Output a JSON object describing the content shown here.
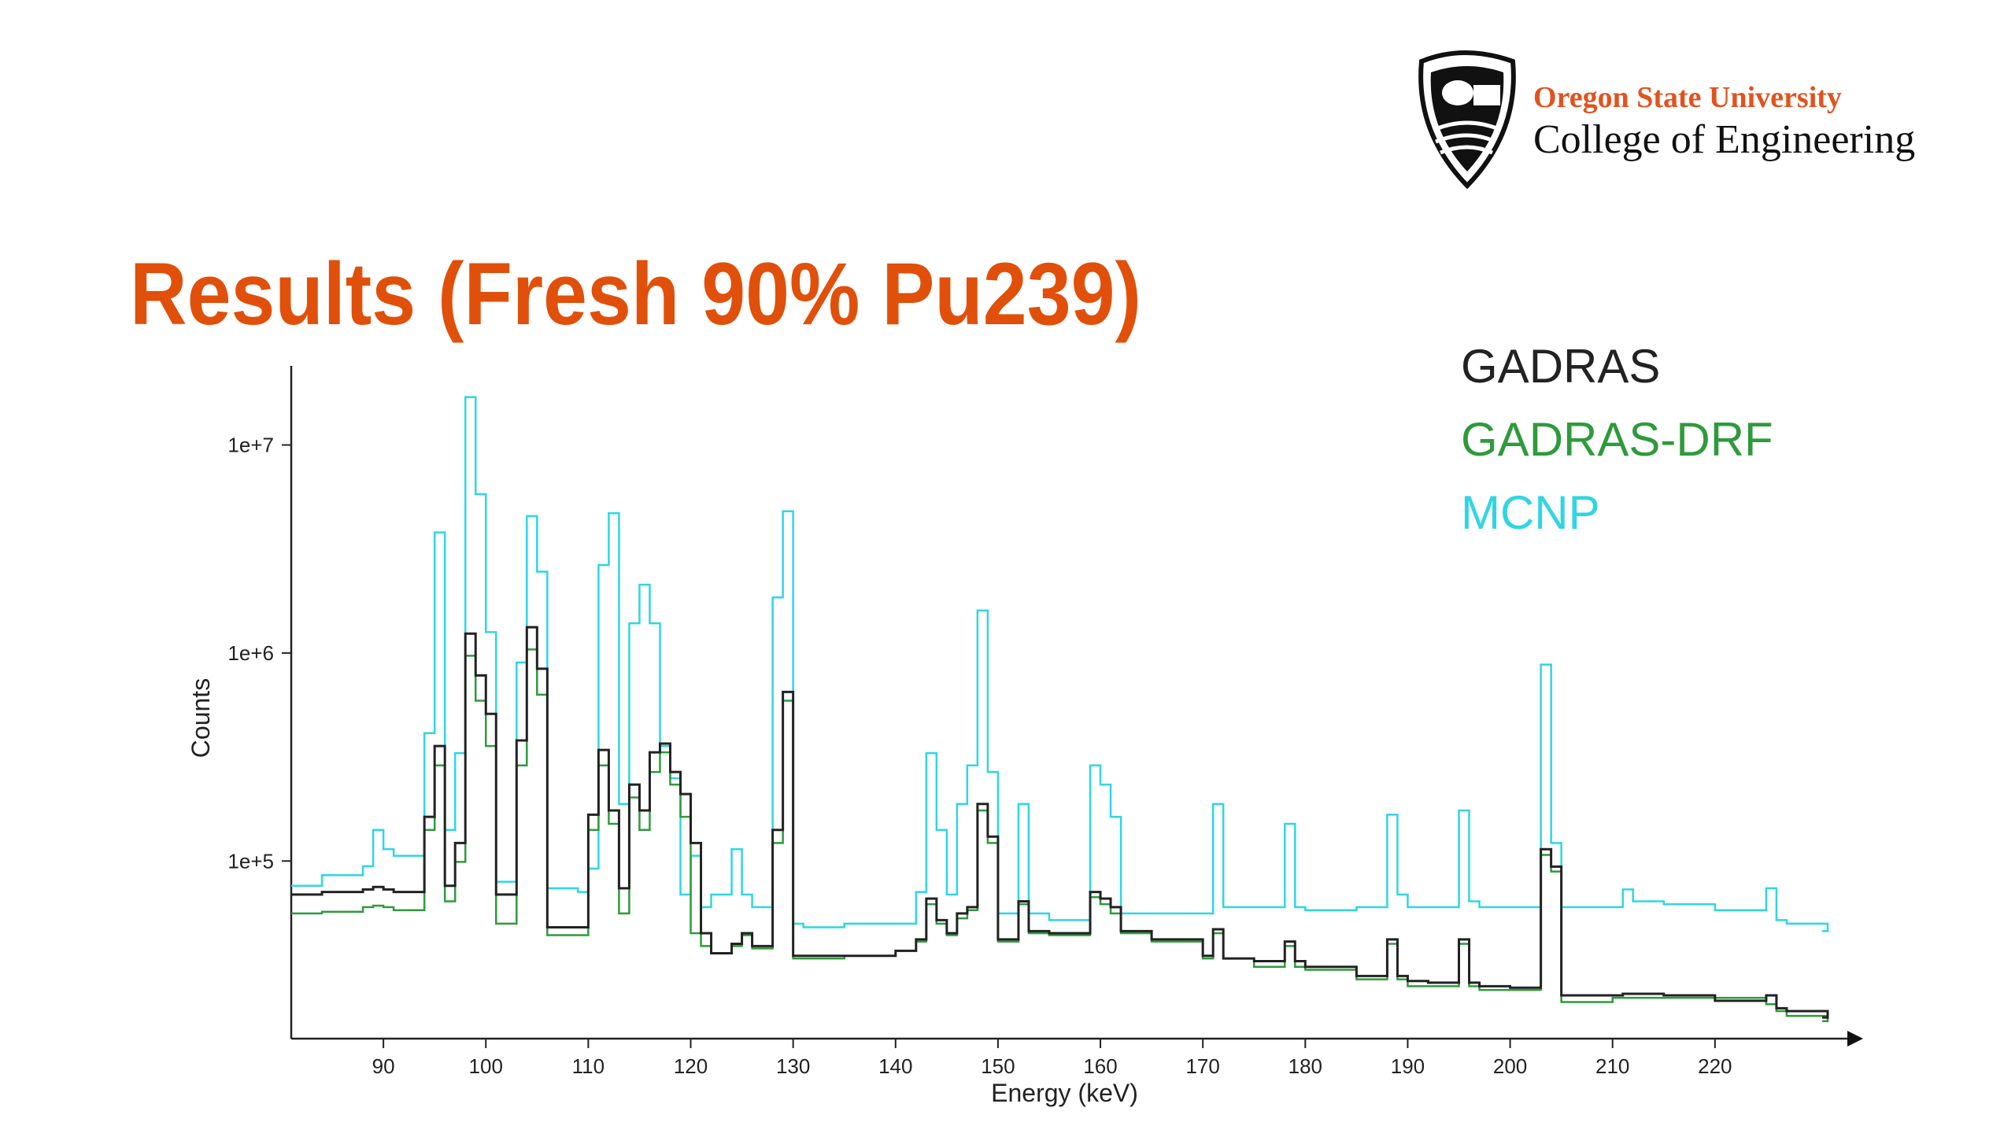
{
  "header": {
    "university": "Oregon State University",
    "college": "College of Engineering"
  },
  "chart_data": {
    "type": "step",
    "title": "Results (Fresh 90% Pu239)",
    "xlabel": "Energy (keV)",
    "ylabel": "Counts",
    "log_y": true,
    "xlim": [
      81,
      232
    ],
    "ylim": [
      14000,
      24000000
    ],
    "xticks": [
      90,
      100,
      110,
      120,
      130,
      140,
      150,
      160,
      170,
      180,
      190,
      200,
      210,
      220
    ],
    "yticks": [
      {
        "value": 100000,
        "label": "1e+5"
      },
      {
        "value": 1000000,
        "label": "1e+6"
      },
      {
        "value": 10000000,
        "label": "1e+7"
      }
    ],
    "legend": "top-right",
    "x": [
      81,
      84,
      88,
      89,
      90,
      91,
      94,
      95,
      96,
      97,
      98,
      99,
      100,
      101,
      103,
      104,
      105,
      106,
      109,
      110,
      111,
      112,
      113,
      114,
      115,
      116,
      117,
      118,
      119,
      120,
      121,
      122,
      124,
      125,
      126,
      128,
      129,
      130,
      131,
      135,
      140,
      142,
      143,
      144,
      145,
      146,
      147,
      148,
      149,
      150,
      152,
      153,
      155,
      159,
      160,
      161,
      162,
      165,
      170,
      171,
      172,
      175,
      178,
      179,
      180,
      185,
      188,
      189,
      190,
      192,
      195,
      196,
      197,
      200,
      203,
      204,
      205,
      210,
      211,
      212,
      215,
      220,
      225,
      226,
      227,
      231
    ],
    "series": [
      {
        "name": "GADRAS",
        "color": "#222222",
        "values": [
          69000,
          71000,
          73000,
          75000,
          73000,
          71000,
          163000,
          357000,
          76000,
          122000,
          1240000,
          780000,
          510000,
          69000,
          380000,
          1330000,
          840000,
          48000,
          48000,
          167000,
          342000,
          175000,
          74000,
          233000,
          175000,
          333000,
          367000,
          268000,
          210000,
          122000,
          45000,
          36000,
          40000,
          45000,
          39000,
          141000,
          650000,
          35000,
          35000,
          35000,
          37000,
          42000,
          66000,
          52000,
          45000,
          56000,
          60000,
          188000,
          131000,
          42000,
          64000,
          46000,
          45000,
          71000,
          66000,
          60000,
          46000,
          42000,
          35000,
          47000,
          34000,
          33000,
          41000,
          33000,
          31000,
          28000,
          42000,
          28000,
          26500,
          26000,
          42000,
          26000,
          25000,
          24600,
          114000,
          94000,
          22600,
          22600,
          23000,
          23000,
          22600,
          21300,
          22600,
          19600,
          19000,
          17700
        ]
      },
      {
        "name": "GADRAS-DRF",
        "color": "#2f9a3c",
        "values": [
          56000,
          57000,
          60000,
          61000,
          60000,
          58000,
          141000,
          288000,
          64000,
          99000,
          970000,
          590000,
          357000,
          50000,
          288000,
          1040000,
          630000,
          44000,
          44000,
          141000,
          288000,
          151000,
          56000,
          202000,
          141000,
          268000,
          333000,
          233000,
          163000,
          45000,
          39000,
          36000,
          39000,
          44000,
          38000,
          122000,
          590000,
          34000,
          34000,
          35000,
          37000,
          41000,
          62000,
          50000,
          44000,
          53000,
          58000,
          175000,
          122000,
          41000,
          62000,
          45000,
          44000,
          67000,
          62000,
          56000,
          45000,
          41000,
          34000,
          45000,
          34000,
          31000,
          39000,
          31000,
          30000,
          27000,
          40000,
          27000,
          25000,
          25000,
          40000,
          25000,
          24000,
          24000,
          107000,
          89000,
          21000,
          22000,
          22000,
          22000,
          22000,
          22000,
          20500,
          19000,
          18000,
          17000
        ]
      },
      {
        "name": "MCNP",
        "color": "#2fd6e2",
        "values": [
          76000,
          85500,
          94400,
          141000,
          114000,
          106000,
          412000,
          3800000,
          141000,
          330000,
          17000000,
          5800000,
          1260000,
          79500,
          900000,
          4550000,
          2460000,
          74000,
          71000,
          92000,
          2650000,
          4700000,
          188000,
          1390000,
          2130000,
          1390000,
          357000,
          250000,
          69000,
          106000,
          60000,
          69000,
          114000,
          69000,
          60000,
          1850000,
          4800000,
          50000,
          48000,
          50000,
          50000,
          71000,
          330000,
          141000,
          69000,
          188000,
          288000,
          1600000,
          268000,
          56000,
          188000,
          56000,
          52000,
          288000,
          233000,
          163000,
          56000,
          56000,
          56000,
          188000,
          60000,
          60000,
          151000,
          60000,
          58000,
          60000,
          167000,
          69000,
          60000,
          60000,
          175000,
          64000,
          60000,
          60000,
          880000,
          122000,
          60000,
          60000,
          73000,
          64000,
          62000,
          58000,
          74000,
          52000,
          50000,
          46000
        ]
      }
    ]
  }
}
